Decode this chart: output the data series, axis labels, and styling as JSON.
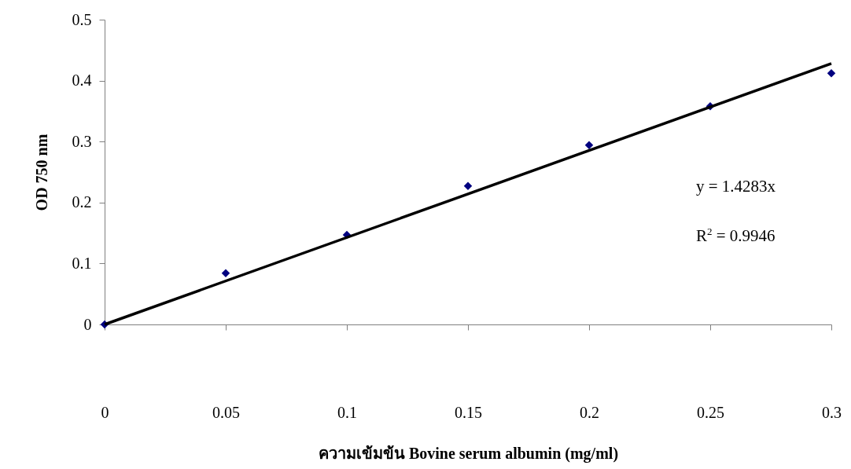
{
  "chart_data": {
    "type": "scatter",
    "xlabel": "ความเข้มข้น Bovine serum albumin (mg/ml)",
    "ylabel": "OD 750 nm",
    "xlim": [
      0,
      0.3
    ],
    "xticks": [
      0,
      0.05,
      0.1,
      0.15,
      0.2,
      0.25,
      0.3
    ],
    "ylim": [
      0,
      0.5
    ],
    "yticks": [
      0,
      0.1,
      0.2,
      0.3,
      0.4,
      0.5
    ],
    "annotations": [
      "y = 1.4283x",
      "R$^{2}$ = 0.9946"
    ],
    "series": [
      {
        "type": "scatter",
        "color": "#000080",
        "marker": "diamond",
        "x": [
          0,
          0.05,
          0.1,
          0.15,
          0.2,
          0.25,
          0.3
        ],
        "values": [
          0,
          0.084,
          0.147,
          0.227,
          0.294,
          0.358,
          0.412
        ]
      },
      {
        "type": "line",
        "color": "#000000",
        "marker": "none",
        "x": [
          0,
          0.3
        ],
        "values": [
          0,
          0.428
        ]
      }
    ]
  }
}
